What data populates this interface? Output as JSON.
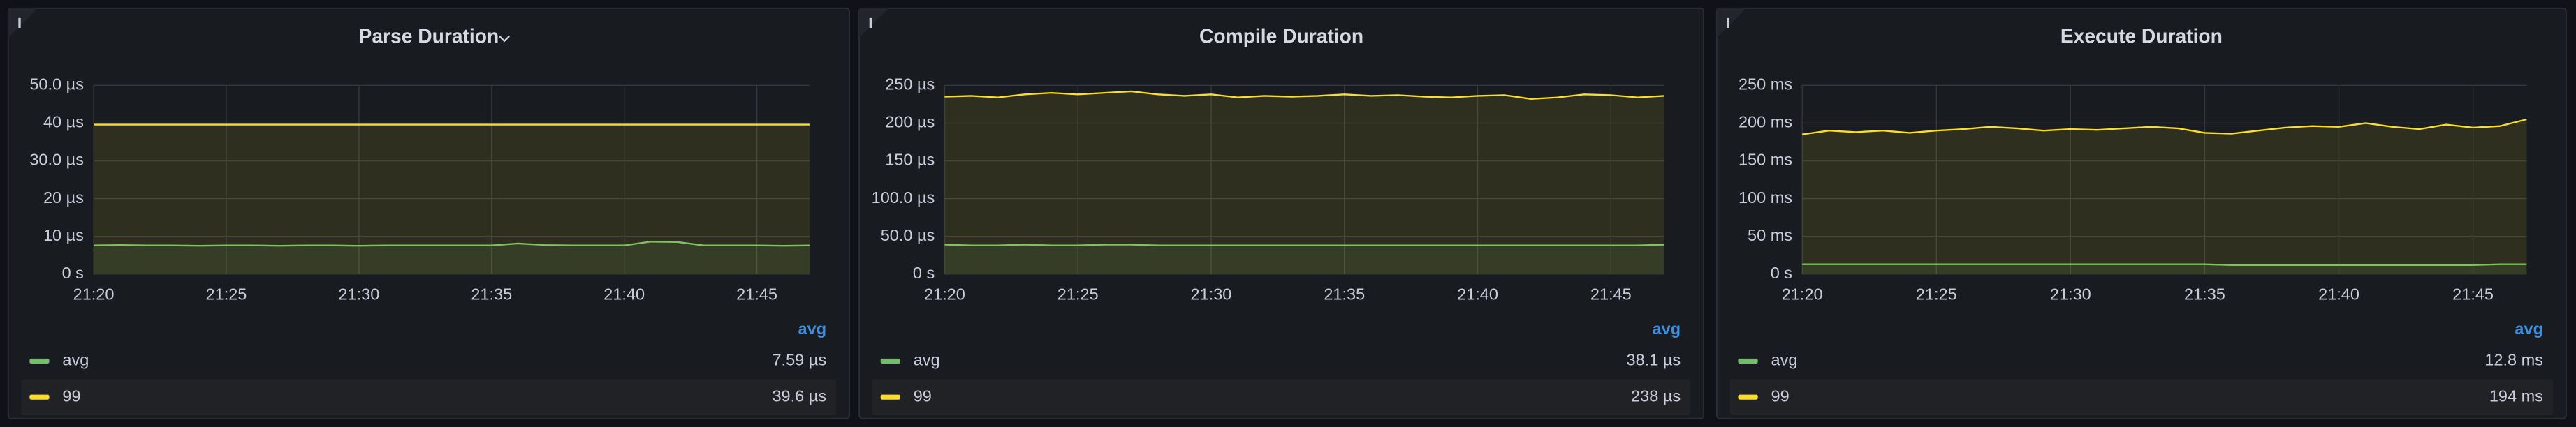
{
  "chart_data": [
    {
      "type": "line",
      "title": "Parse Duration",
      "x": [
        "21:20",
        "21:21",
        "21:22",
        "21:23",
        "21:24",
        "21:25",
        "21:26",
        "21:27",
        "21:28",
        "21:29",
        "21:30",
        "21:31",
        "21:32",
        "21:33",
        "21:34",
        "21:35",
        "21:36",
        "21:37",
        "21:38",
        "21:39",
        "21:40",
        "21:41",
        "21:42",
        "21:43",
        "21:44",
        "21:45",
        "21:46",
        "21:47"
      ],
      "xlim": [
        "21:20",
        "21:47"
      ],
      "xticks": [
        "21:20",
        "21:25",
        "21:30",
        "21:35",
        "21:40",
        "21:45"
      ],
      "ylim": [
        0,
        50
      ],
      "yticks": [
        {
          "value": 0,
          "label": "0 s"
        },
        {
          "value": 10,
          "label": "10 µs"
        },
        {
          "value": 20,
          "label": "20 µs"
        },
        {
          "value": 30,
          "label": "30.0 µs"
        },
        {
          "value": 40,
          "label": "40 µs"
        },
        {
          "value": 50,
          "label": "50.0 µs"
        }
      ],
      "grid": true,
      "legend_header": "avg",
      "series": [
        {
          "name": "avg",
          "color": "#73bf69",
          "values": [
            7.6,
            7.7,
            7.6,
            7.6,
            7.5,
            7.6,
            7.6,
            7.5,
            7.6,
            7.6,
            7.5,
            7.6,
            7.6,
            7.6,
            7.6,
            7.6,
            8.1,
            7.7,
            7.6,
            7.6,
            7.6,
            8.6,
            8.5,
            7.6,
            7.6,
            7.6,
            7.5,
            7.6
          ],
          "stat": {
            "value": 7.59,
            "label": "7.59 µs"
          }
        },
        {
          "name": "99",
          "color": "#fade2a",
          "values": [
            39.6,
            39.6,
            39.6,
            39.6,
            39.6,
            39.6,
            39.6,
            39.6,
            39.6,
            39.6,
            39.6,
            39.6,
            39.6,
            39.6,
            39.6,
            39.6,
            39.6,
            39.6,
            39.6,
            39.6,
            39.6,
            39.6,
            39.6,
            39.6,
            39.6,
            39.6,
            39.6,
            39.6
          ],
          "stat": {
            "value": 39.6,
            "label": "39.6 µs"
          }
        }
      ]
    },
    {
      "type": "line",
      "title": "Compile Duration",
      "x": [
        "21:20",
        "21:21",
        "21:22",
        "21:23",
        "21:24",
        "21:25",
        "21:26",
        "21:27",
        "21:28",
        "21:29",
        "21:30",
        "21:31",
        "21:32",
        "21:33",
        "21:34",
        "21:35",
        "21:36",
        "21:37",
        "21:38",
        "21:39",
        "21:40",
        "21:41",
        "21:42",
        "21:43",
        "21:44",
        "21:45",
        "21:46",
        "21:47"
      ],
      "xlim": [
        "21:20",
        "21:47"
      ],
      "xticks": [
        "21:20",
        "21:25",
        "21:30",
        "21:35",
        "21:40",
        "21:45"
      ],
      "ylim": [
        0,
        250
      ],
      "yticks": [
        {
          "value": 0,
          "label": "0 s"
        },
        {
          "value": 50,
          "label": "50.0 µs"
        },
        {
          "value": 100,
          "label": "100.0 µs"
        },
        {
          "value": 150,
          "label": "150 µs"
        },
        {
          "value": 200,
          "label": "200 µs"
        },
        {
          "value": 250,
          "label": "250 µs"
        }
      ],
      "grid": true,
      "legend_header": "avg",
      "series": [
        {
          "name": "avg",
          "color": "#73bf69",
          "values": [
            39,
            38,
            38,
            39,
            38,
            38,
            39,
            39,
            38,
            38,
            38,
            38,
            38,
            38,
            38,
            38,
            38,
            38,
            38,
            38,
            38,
            38,
            38,
            38,
            38,
            38,
            38,
            39
          ],
          "stat": {
            "value": 38.1,
            "label": "38.1 µs"
          }
        },
        {
          "name": "99",
          "color": "#fade2a",
          "values": [
            235,
            236,
            234,
            238,
            240,
            238,
            240,
            242,
            238,
            236,
            238,
            234,
            236,
            235,
            236,
            238,
            236,
            237,
            235,
            234,
            236,
            237,
            232,
            234,
            238,
            237,
            234,
            236
          ],
          "stat": {
            "value": 238,
            "label": "238 µs"
          }
        }
      ]
    },
    {
      "type": "line",
      "title": "Execute Duration",
      "x": [
        "21:20",
        "21:21",
        "21:22",
        "21:23",
        "21:24",
        "21:25",
        "21:26",
        "21:27",
        "21:28",
        "21:29",
        "21:30",
        "21:31",
        "21:32",
        "21:33",
        "21:34",
        "21:35",
        "21:36",
        "21:37",
        "21:38",
        "21:39",
        "21:40",
        "21:41",
        "21:42",
        "21:43",
        "21:44",
        "21:45",
        "21:46",
        "21:47"
      ],
      "xlim": [
        "21:20",
        "21:47"
      ],
      "xticks": [
        "21:20",
        "21:25",
        "21:30",
        "21:35",
        "21:40",
        "21:45"
      ],
      "ylim": [
        0,
        250
      ],
      "yticks": [
        {
          "value": 0,
          "label": "0 s"
        },
        {
          "value": 50,
          "label": "50 ms"
        },
        {
          "value": 100,
          "label": "100 ms"
        },
        {
          "value": 150,
          "label": "150 ms"
        },
        {
          "value": 200,
          "label": "200 ms"
        },
        {
          "value": 250,
          "label": "250 ms"
        }
      ],
      "grid": true,
      "legend_header": "avg",
      "series": [
        {
          "name": "avg",
          "color": "#73bf69",
          "values": [
            13,
            13,
            13,
            13,
            13,
            13,
            13,
            13,
            13,
            13,
            13,
            13,
            13,
            13,
            13,
            13,
            12,
            12,
            12,
            12,
            12,
            12,
            12,
            12,
            12,
            12,
            13,
            13
          ],
          "stat": {
            "value": 12.8,
            "label": "12.8 ms"
          }
        },
        {
          "name": "99",
          "color": "#fade2a",
          "values": [
            185,
            190,
            188,
            190,
            187,
            190,
            192,
            195,
            193,
            190,
            192,
            191,
            193,
            195,
            193,
            187,
            186,
            190,
            194,
            196,
            195,
            200,
            195,
            192,
            198,
            194,
            196,
            205
          ],
          "stat": {
            "value": 194,
            "label": "194 ms"
          }
        }
      ]
    }
  ]
}
